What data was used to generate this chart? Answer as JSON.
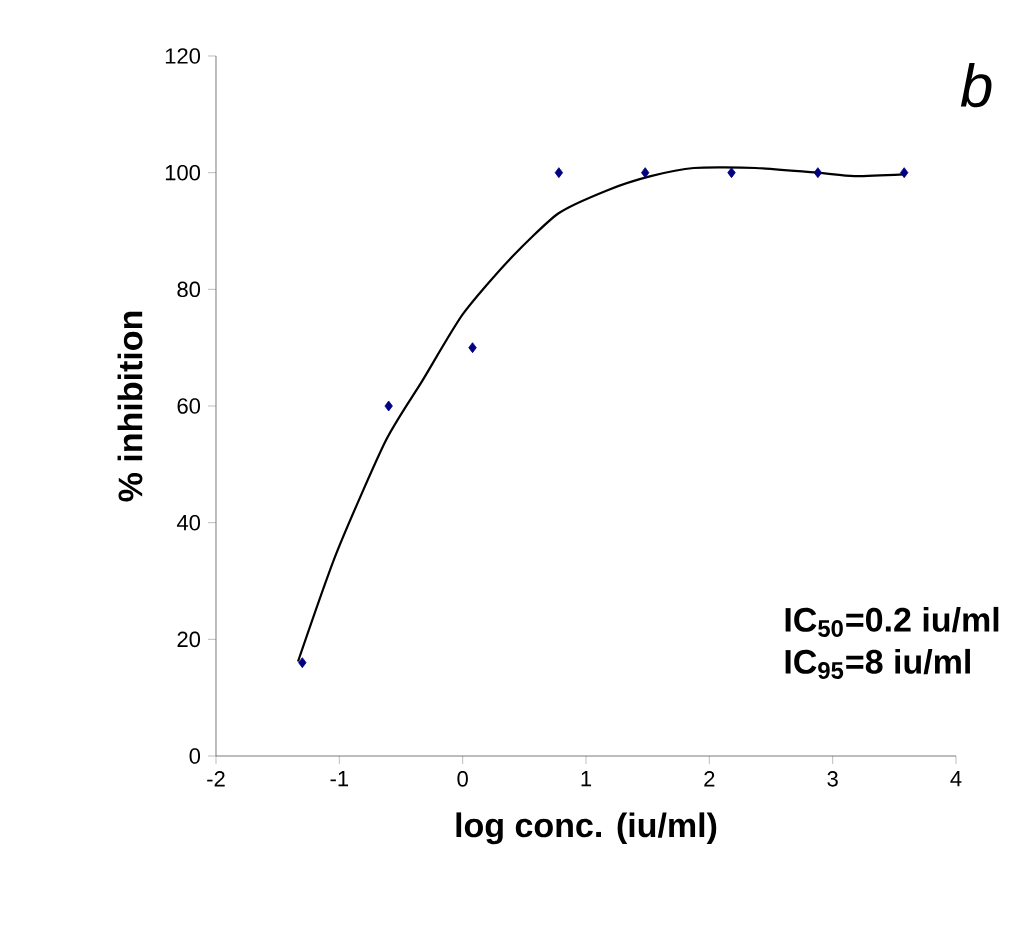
{
  "chart_data": {
    "type": "scatter",
    "xlabel": "log conc. (iu/ml)",
    "ylabel": "% inhibition",
    "xlim": [
      -2,
      4
    ],
    "xticks": [
      -2,
      -1,
      0,
      1,
      2,
      3,
      4
    ],
    "ylim": [
      0,
      120
    ],
    "yticks": [
      0,
      20,
      40,
      60,
      80,
      100,
      120
    ],
    "grid": false,
    "annotations": [
      "b",
      "IC$_{50}$=0.2 iu/ml",
      "IC$_{95}$=8 iu/ml"
    ],
    "series": [
      {
        "color": "#000080",
        "marker": "diamond",
        "x": [
          -1.3,
          -0.6,
          0.08,
          0.78,
          1.48,
          2.18,
          2.88,
          3.58
        ],
        "values": [
          16,
          60,
          70,
          100,
          100,
          100,
          100,
          100
        ]
      },
      {
        "type": "line",
        "color": "#000000",
        "marker": "none",
        "line_style": "solid",
        "x": [
          -1.335,
          -1.025,
          -0.625,
          -0.325,
          0,
          0.375,
          0.775,
          1.175,
          1.525,
          1.875,
          2.375,
          2.875,
          3.175,
          3.575
        ],
        "values": [
          16.2,
          34.7,
          54,
          64.4,
          75.7,
          85,
          93,
          97,
          99.4,
          100.8,
          100.8,
          100,
          99.4,
          99.7
        ]
      }
    ]
  }
}
